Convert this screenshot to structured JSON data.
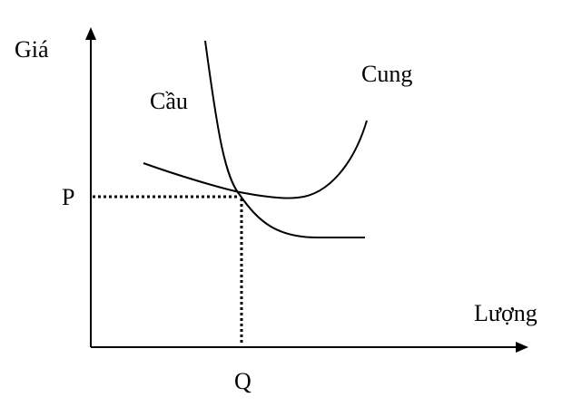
{
  "labels": {
    "y_axis": "Giá",
    "x_axis": "Lượng",
    "demand": "Cầu",
    "supply": "Cung",
    "price": "P",
    "quantity": "Q"
  },
  "colors": {
    "stroke": "#000000",
    "background": "#ffffff"
  }
}
